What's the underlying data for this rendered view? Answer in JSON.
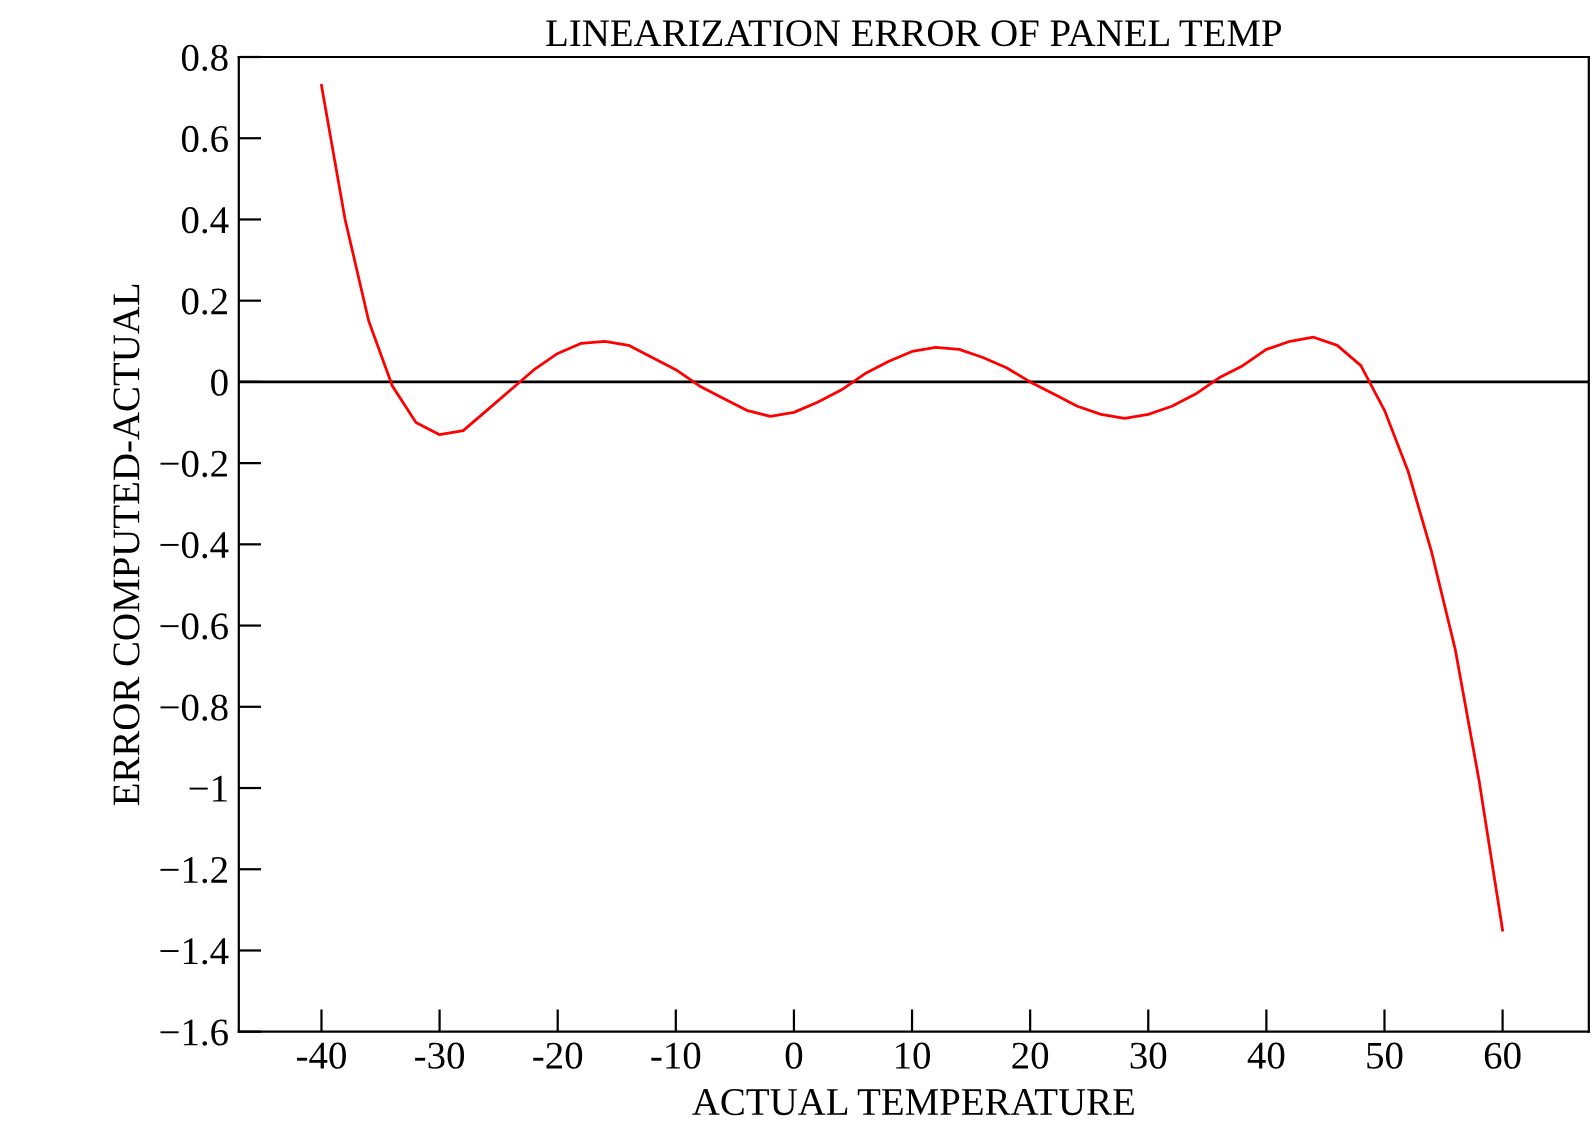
{
  "chart_data": {
    "type": "line",
    "title": "LINEARIZATION ERROR OF PANEL TEMP",
    "xlabel": "ACTUAL TEMPERATURE",
    "ylabel": "ERROR COMPUTED-ACTUAL",
    "x": [
      -40,
      -38,
      -36,
      -34,
      -32,
      -30,
      -28,
      -26,
      -24,
      -22,
      -20,
      -18,
      -16,
      -14,
      -12,
      -10,
      -8,
      -6,
      -4,
      -2,
      0,
      2,
      4,
      6,
      8,
      10,
      12,
      14,
      16,
      18,
      20,
      22,
      24,
      26,
      28,
      30,
      32,
      34,
      36,
      38,
      40,
      42,
      44,
      46,
      48,
      50,
      52,
      54,
      56,
      58,
      60
    ],
    "series": [
      {
        "color": "#ff0000",
        "values": [
          0.73,
          0.4,
          0.15,
          -0.01,
          -0.1,
          -0.13,
          -0.12,
          -0.07,
          -0.02,
          0.03,
          0.07,
          0.095,
          0.1,
          0.09,
          0.06,
          0.03,
          -0.01,
          -0.04,
          -0.07,
          -0.085,
          -0.075,
          -0.05,
          -0.02,
          0.02,
          0.05,
          0.075,
          0.085,
          0.08,
          0.06,
          0.035,
          0.0,
          -0.03,
          -0.06,
          -0.08,
          -0.09,
          -0.08,
          -0.06,
          -0.03,
          0.01,
          0.04,
          0.08,
          0.1,
          0.11,
          0.09,
          0.04,
          -0.07,
          -0.22,
          -0.42,
          -0.66,
          -0.98,
          -1.35
        ]
      }
    ],
    "xlim": [
      -47,
      67.3
    ],
    "ylim": [
      -1.6,
      0.8
    ],
    "xticks": [
      -40,
      -30,
      -20,
      -10,
      0,
      10,
      20,
      30,
      40,
      50,
      60
    ],
    "yticks": [
      {
        "value": 0.8,
        "label": "0.8"
      },
      {
        "value": 0.6,
        "label": "0.6"
      },
      {
        "value": 0.4,
        "label": "0.4"
      },
      {
        "value": 0.2,
        "label": "0.2"
      },
      0,
      {
        "value": -0.2,
        "label": "−0.2"
      },
      {
        "value": -0.4,
        "label": "−0.4"
      },
      {
        "value": -0.6,
        "label": "−0.6"
      },
      {
        "value": -0.8,
        "label": "−0.8"
      },
      {
        "value": -1,
        "label": "−1"
      },
      {
        "value": -1.2,
        "label": "−1.2"
      },
      {
        "value": -1.4,
        "label": "−1.4"
      },
      {
        "value": -1.6,
        "label": "−1.6"
      }
    ],
    "ref_lines": [
      {
        "axis": "y",
        "value": 0,
        "color": "#000000"
      }
    ],
    "grid": false,
    "legend": false,
    "marker": "none",
    "line_style": "solid"
  }
}
